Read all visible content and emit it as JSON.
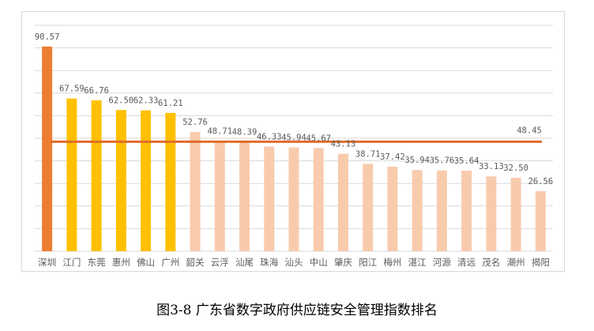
{
  "chart_data": {
    "type": "bar",
    "title": "",
    "xlabel": "",
    "ylabel": "",
    "ylim": [
      0,
      100
    ],
    "grid": true,
    "categories": [
      "深圳",
      "江门",
      "东莞",
      "惠州",
      "佛山",
      "广州",
      "韶关",
      "云浮",
      "汕尾",
      "珠海",
      "汕头",
      "中山",
      "肇庆",
      "阳江",
      "梅州",
      "湛江",
      "河源",
      "清远",
      "茂名",
      "潮州",
      "揭阳"
    ],
    "values": [
      90.57,
      67.59,
      66.76,
      62.5,
      62.33,
      61.21,
      52.76,
      48.71,
      48.39,
      46.33,
      45.94,
      45.67,
      43.13,
      38.71,
      37.42,
      35.94,
      35.76,
      35.64,
      33.13,
      32.5,
      26.56
    ],
    "value_labels": [
      "90.57",
      "67.59",
      "66.76",
      "62.50",
      "62.33",
      "61.21",
      "52.76",
      "48.71",
      "48.39",
      "46.33",
      "45.94",
      "45.67",
      "43.13",
      "38.71",
      "37.42",
      "35.94",
      "35.76",
      "35.64",
      "33.13",
      "32.50",
      "26.56"
    ],
    "bar_colors": [
      "#ed7d31",
      "#ffc000",
      "#ffc000",
      "#ffc000",
      "#ffc000",
      "#ffc000",
      "#f8cbad",
      "#f8cbad",
      "#f8cbad",
      "#f8cbad",
      "#f8cbad",
      "#f8cbad",
      "#f8cbad",
      "#f8cbad",
      "#f8cbad",
      "#f8cbad",
      "#f8cbad",
      "#f8cbad",
      "#f8cbad",
      "#f8cbad",
      "#f8cbad"
    ],
    "average_line": {
      "value": 48.45,
      "label": "48.45",
      "color": "#e06c2c"
    },
    "gridline_color": "#d9d9d9",
    "label_color": "#595959"
  },
  "caption": "图3-8  广东省数字政府供应链安全管理指数排名"
}
